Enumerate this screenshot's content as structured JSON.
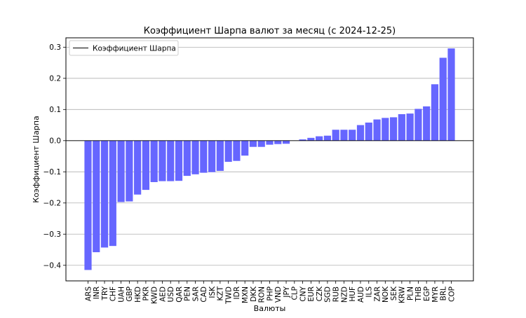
{
  "chart_data": {
    "type": "bar",
    "title": "Коэффициент Шарпа валют за месяц (с 2024-12-25)",
    "xlabel": "Валюты",
    "ylabel": "Коэффициент Шарпа",
    "ylim": [
      -0.45,
      0.33
    ],
    "yticks": [
      -0.4,
      -0.3,
      -0.2,
      -0.1,
      0.0,
      0.1,
      0.2,
      0.3
    ],
    "ytick_labels": [
      "−0.4",
      "−0.3",
      "−0.2",
      "−0.1",
      "0.0",
      "0.1",
      "0.2",
      "0.3"
    ],
    "grid": "horizontal",
    "legend_position": "top-left",
    "legend_label": "Коэффициент Шарпа",
    "bar_color": "#6666ff",
    "zero_line_color": "#000000",
    "categories": [
      "ARS",
      "INR",
      "TRY",
      "CHF",
      "UAH",
      "GBP",
      "HKD",
      "PKR",
      "KWD",
      "AED",
      "USD",
      "QAR",
      "PEN",
      "SAR",
      "CAD",
      "ISK",
      "KZT",
      "TWD",
      "IDR",
      "MXN",
      "DKK",
      "RON",
      "PHP",
      "VND",
      "JPY",
      "CLP",
      "CNY",
      "EUR",
      "CZK",
      "SGD",
      "RUB",
      "NZD",
      "HUF",
      "AUD",
      "ILS",
      "ZAR",
      "NOK",
      "SEK",
      "KRW",
      "PLN",
      "THB",
      "EGP",
      "MYR",
      "BRL",
      "COP"
    ],
    "values": [
      -0.415,
      -0.358,
      -0.343,
      -0.338,
      -0.197,
      -0.195,
      -0.173,
      -0.158,
      -0.133,
      -0.13,
      -0.13,
      -0.129,
      -0.113,
      -0.108,
      -0.103,
      -0.101,
      -0.097,
      -0.068,
      -0.065,
      -0.048,
      -0.02,
      -0.02,
      -0.013,
      -0.011,
      -0.01,
      0.0,
      0.004,
      0.009,
      0.014,
      0.016,
      0.035,
      0.035,
      0.035,
      0.05,
      0.058,
      0.068,
      0.073,
      0.075,
      0.085,
      0.087,
      0.102,
      0.11,
      0.181,
      0.266,
      0.296
    ]
  }
}
